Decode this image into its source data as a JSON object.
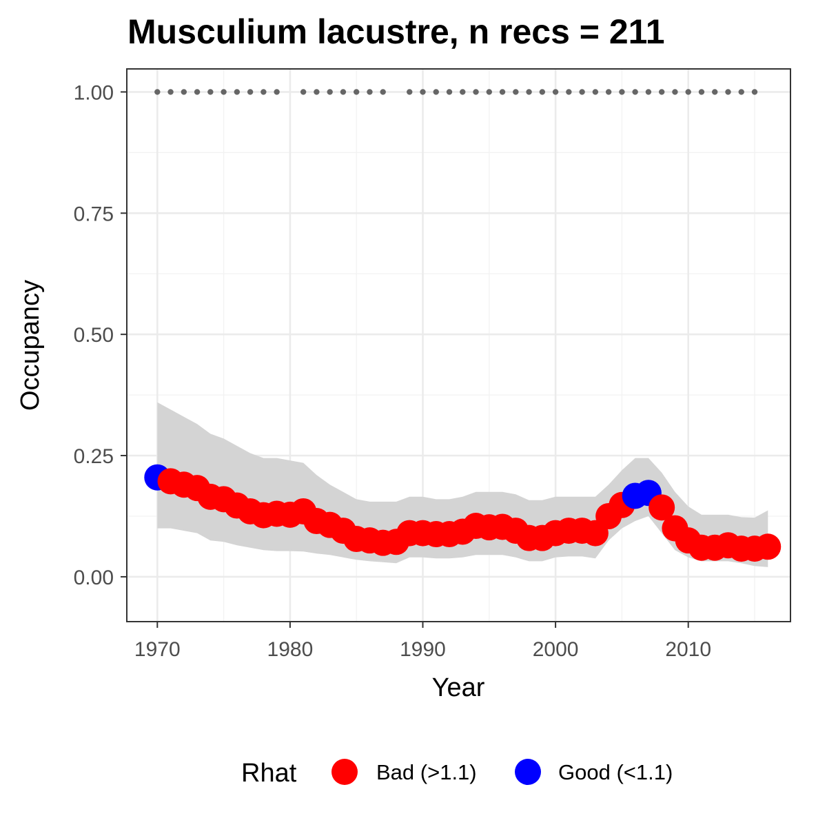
{
  "chart_data": {
    "type": "scatter",
    "title": "Musculium lacustre, n recs = 211",
    "xlabel": "Year",
    "ylabel": "Occupancy",
    "xlim": [
      1967.7,
      2017.7
    ],
    "ylim": [
      -0.0925,
      1.0475
    ],
    "x_ticks": [
      1970,
      1980,
      1990,
      2000,
      2010
    ],
    "x_tick_labels": [
      "1970",
      "1980",
      "1990",
      "2000",
      "2010"
    ],
    "y_ticks": [
      0,
      0.25,
      0.5,
      0.75,
      1
    ],
    "y_tick_labels": [
      "0.00",
      "0.25",
      "0.50",
      "0.75",
      "1.00"
    ],
    "grid": true,
    "legend_position": "bottom",
    "legend": {
      "title": "Rhat",
      "items": [
        {
          "label": "Bad (>1.1)",
          "color": "#ff0000"
        },
        {
          "label": "Good (<1.1)",
          "color": "#0000ff"
        }
      ]
    },
    "colors": {
      "bad": "#ff0000",
      "good": "#0000ff",
      "ribbon": "#d4d4d4",
      "record": "#666666"
    },
    "series": [
      {
        "x": [
          1970,
          1971,
          1972,
          1973,
          1974,
          1975,
          1976,
          1977,
          1978,
          1979,
          1980,
          1981,
          1982,
          1983,
          1984,
          1985,
          1986,
          1987,
          1988,
          1989,
          1990,
          1991,
          1992,
          1993,
          1994,
          1995,
          1996,
          1997,
          1998,
          1999,
          2000,
          2001,
          2002,
          2003,
          2004,
          2005,
          2006,
          2007,
          2008,
          2009,
          2010,
          2011,
          2012,
          2013,
          2014,
          2015,
          2016
        ],
        "y": [
          0.205,
          0.197,
          0.19,
          0.183,
          0.165,
          0.16,
          0.147,
          0.135,
          0.127,
          0.13,
          0.128,
          0.135,
          0.115,
          0.107,
          0.095,
          0.078,
          0.075,
          0.07,
          0.072,
          0.09,
          0.09,
          0.088,
          0.088,
          0.093,
          0.105,
          0.102,
          0.103,
          0.095,
          0.08,
          0.08,
          0.09,
          0.095,
          0.095,
          0.09,
          0.125,
          0.148,
          0.167,
          0.173,
          0.143,
          0.1,
          0.075,
          0.06,
          0.06,
          0.065,
          0.058,
          0.058,
          0.062
        ],
        "lower": [
          0.1,
          0.1,
          0.095,
          0.09,
          0.075,
          0.072,
          0.065,
          0.06,
          0.055,
          0.053,
          0.053,
          0.052,
          0.048,
          0.045,
          0.04,
          0.035,
          0.032,
          0.03,
          0.028,
          0.04,
          0.04,
          0.038,
          0.038,
          0.04,
          0.045,
          0.045,
          0.045,
          0.04,
          0.032,
          0.032,
          0.04,
          0.042,
          0.042,
          0.038,
          0.075,
          0.1,
          0.115,
          0.125,
          0.09,
          0.055,
          0.04,
          0.032,
          0.032,
          0.032,
          0.028,
          0.022,
          0.02
        ],
        "upper": [
          0.36,
          0.345,
          0.33,
          0.315,
          0.295,
          0.285,
          0.27,
          0.255,
          0.245,
          0.245,
          0.24,
          0.235,
          0.21,
          0.19,
          0.175,
          0.16,
          0.155,
          0.155,
          0.155,
          0.165,
          0.165,
          0.16,
          0.16,
          0.165,
          0.175,
          0.175,
          0.175,
          0.17,
          0.158,
          0.158,
          0.165,
          0.165,
          0.165,
          0.165,
          0.19,
          0.22,
          0.245,
          0.245,
          0.215,
          0.175,
          0.145,
          0.128,
          0.128,
          0.128,
          0.123,
          0.122,
          0.137
        ],
        "rhat": [
          "good",
          "bad",
          "bad",
          "bad",
          "bad",
          "bad",
          "bad",
          "bad",
          "bad",
          "bad",
          "bad",
          "bad",
          "bad",
          "bad",
          "bad",
          "bad",
          "bad",
          "bad",
          "bad",
          "bad",
          "bad",
          "bad",
          "bad",
          "bad",
          "bad",
          "bad",
          "bad",
          "bad",
          "bad",
          "bad",
          "bad",
          "bad",
          "bad",
          "bad",
          "bad",
          "bad",
          "good",
          "good",
          "bad",
          "bad",
          "bad",
          "bad",
          "bad",
          "bad",
          "bad",
          "bad",
          "bad"
        ]
      }
    ],
    "record_years": [
      1970,
      1971,
      1972,
      1973,
      1974,
      1975,
      1976,
      1977,
      1978,
      1979,
      1981,
      1982,
      1983,
      1984,
      1985,
      1986,
      1987,
      1989,
      1990,
      1991,
      1992,
      1993,
      1994,
      1995,
      1996,
      1997,
      1998,
      1999,
      2000,
      2001,
      2002,
      2003,
      2004,
      2005,
      2006,
      2007,
      2008,
      2009,
      2010,
      2011,
      2012,
      2013,
      2014,
      2015
    ],
    "record_value": 1.0
  }
}
